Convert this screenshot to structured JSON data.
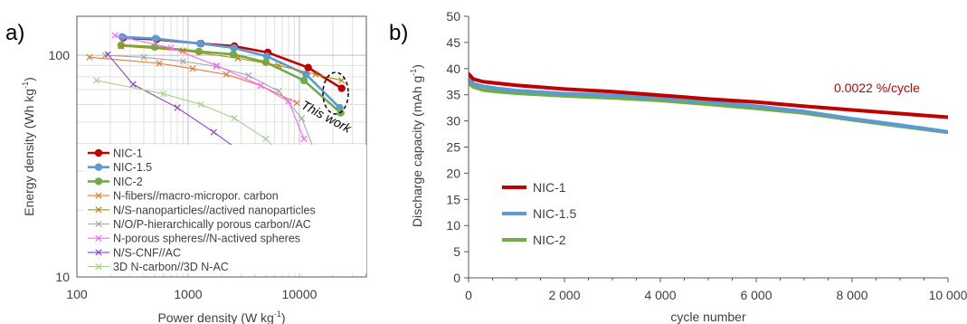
{
  "chart_data": [
    {
      "panel_label": "a)",
      "type": "line",
      "log_x": true,
      "log_y": true,
      "xlabel": "Power density (W kg",
      "xlabel_sup": "-1",
      "xlabel_end": ")",
      "ylabel": "Energy density (Wh kg",
      "ylabel_sup": "-1",
      "ylabel_end": ")",
      "xlim": [
        100,
        40000
      ],
      "ylim": [
        10,
        150
      ],
      "x_ticks": [
        100,
        1000,
        10000
      ],
      "x_tick_labels": [
        "100",
        "1000",
        "10000"
      ],
      "y_ticks": [
        10,
        100
      ],
      "y_tick_labels": [
        "10",
        "100"
      ],
      "grid": "log minor",
      "legend_position": "bottom-left",
      "annotation": "This work",
      "series": [
        {
          "name": "NIC-1",
          "color": "#c00000",
          "marker": "circle",
          "x": [
            260,
            520,
            1300,
            2600,
            5200,
            12000,
            24000
          ],
          "y": [
            120,
            118,
            113,
            110,
            103,
            88,
            71
          ]
        },
        {
          "name": "NIC-1.5",
          "color": "#5b9bd5",
          "marker": "circle",
          "x": [
            255,
            510,
            1280,
            2580,
            5100,
            11500,
            23000
          ],
          "y": [
            121,
            119,
            113,
            108,
            99,
            82,
            58
          ]
        },
        {
          "name": "NIC-2",
          "color": "#70ad47",
          "marker": "circle",
          "x": [
            250,
            500,
            1250,
            2550,
            5000,
            11000,
            23500
          ],
          "y": [
            111,
            109,
            104,
            101,
            93,
            77,
            55
          ]
        },
        {
          "name": "N-fibers//macro-micropor. carbon",
          "color": "#e07b39",
          "marker": "x",
          "x": [
            130,
            550,
            1100,
            2200,
            4500,
            9500
          ],
          "y": [
            98,
            92,
            87,
            82,
            73,
            61
          ]
        },
        {
          "name": "N/S-nanoparticles//actived nanoparticles",
          "color": "#b8860b",
          "marker": "x",
          "x": [
            250,
            900,
            2800,
            6500,
            14000,
            24000
          ],
          "y": [
            110,
            105,
            97,
            90,
            82,
            77
          ]
        },
        {
          "name": "N/O/P-hierarchically porous carbon//AC",
          "color": "#a6a6a6",
          "marker": "x",
          "x": [
            180,
            400,
            900,
            1800,
            3500,
            6500,
            10500,
            14000
          ],
          "y": [
            100,
            98,
            94,
            89,
            81,
            69,
            52,
            36
          ]
        },
        {
          "name": "N-porous spheres//N-actived spheres",
          "color": "#ff66ff",
          "marker": "x",
          "x": [
            220,
            700,
            1800,
            4500,
            8000,
            11000
          ],
          "y": [
            123,
            108,
            90,
            73,
            62,
            42
          ]
        },
        {
          "name": "N/S-CNF//AC",
          "color": "#8e44c8",
          "marker": "x",
          "x": [
            190,
            320,
            800,
            1700,
            3400,
            7500,
            17500
          ],
          "y": [
            101,
            74,
            58,
            45,
            35,
            25,
            23
          ]
        },
        {
          "name": "3D N-carbon//3D N-AC",
          "color": "#a9d18e",
          "marker": "x",
          "x": [
            150,
            600,
            1300,
            2600,
            5000,
            9000
          ],
          "y": [
            77,
            67,
            60,
            52,
            42,
            31
          ]
        }
      ]
    },
    {
      "panel_label": "b)",
      "type": "line",
      "xlabel": "cycle number",
      "ylabel": "Discharge capacity (mAh g",
      "ylabel_sup": "-1",
      "ylabel_end": ")",
      "xlim": [
        0,
        10000
      ],
      "ylim": [
        0,
        50
      ],
      "x_ticks": [
        0,
        2000,
        4000,
        6000,
        8000,
        10000
      ],
      "x_tick_labels": [
        "0",
        "2 000",
        "4 000",
        "6 000",
        "8 000",
        "10 000"
      ],
      "y_ticks": [
        0,
        5,
        10,
        15,
        20,
        25,
        30,
        35,
        40,
        45,
        50
      ],
      "y_tick_labels": [
        "0",
        "5",
        "10",
        "15",
        "20",
        "25",
        "30",
        "35",
        "40",
        "45",
        "50"
      ],
      "grid": false,
      "legend_position": "bottom-left",
      "annotation": "0.0022 %/cycle",
      "series": [
        {
          "name": "NIC-1",
          "color": "#c00000",
          "x": [
            0,
            100,
            300,
            600,
            1000,
            2000,
            3000,
            4000,
            5000,
            6000,
            7000,
            8000,
            9000,
            10000
          ],
          "y": [
            39.0,
            38.0,
            37.5,
            37.2,
            36.8,
            36.1,
            35.6,
            34.9,
            34.2,
            33.6,
            32.8,
            32.1,
            31.4,
            30.7
          ]
        },
        {
          "name": "NIC-1.5",
          "color": "#5b9bd5",
          "x": [
            0,
            100,
            300,
            600,
            1000,
            2000,
            3000,
            4000,
            5000,
            6000,
            7000,
            8000,
            9000,
            10000
          ],
          "y": [
            38.2,
            37.1,
            36.6,
            36.2,
            35.8,
            35.2,
            34.9,
            34.4,
            33.7,
            32.8,
            31.8,
            30.4,
            29.2,
            27.9
          ]
        },
        {
          "name": "NIC-2",
          "color": "#70ad47",
          "x": [
            0,
            100,
            300,
            600,
            1000,
            2000,
            3000,
            4000,
            5000,
            6000,
            7000,
            8000,
            9000,
            10000
          ],
          "y": [
            37.2,
            36.5,
            35.9,
            35.6,
            35.3,
            34.8,
            34.4,
            33.9,
            33.2,
            32.4,
            31.5,
            30.2,
            29.0,
            27.8
          ]
        }
      ]
    }
  ]
}
